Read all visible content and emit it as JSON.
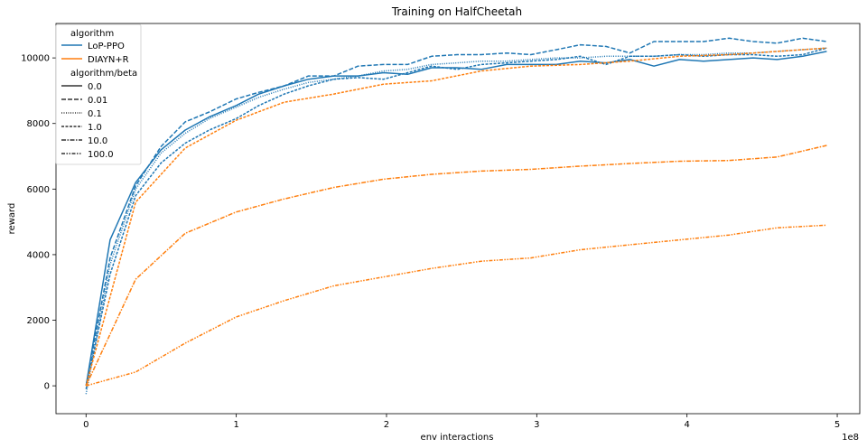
{
  "chart_data": {
    "type": "line",
    "title": "Training on HalfCheetah",
    "xlabel": "env interactions",
    "ylabel": "reward",
    "x_offset_text": "1e8",
    "xlim": [
      -0.2,
      5.15
    ],
    "ylim": [
      -850,
      11050
    ],
    "x_ticks": [
      0,
      1,
      2,
      3,
      4,
      5
    ],
    "x_tick_labels": [
      "0",
      "1",
      "2",
      "3",
      "4",
      "5"
    ],
    "y_ticks": [
      0,
      2000,
      4000,
      6000,
      8000,
      10000
    ],
    "y_tick_labels": [
      "0",
      "2000",
      "4000",
      "6000",
      "8000",
      "10000"
    ],
    "grid": false,
    "legend": {
      "placement": "top-left",
      "hue_title": "algorithm",
      "hue_entries": [
        {
          "label": "LoP-PPO",
          "color": "#1f77b4"
        },
        {
          "label": "DIAYN+R",
          "color": "#ff7f0e"
        }
      ],
      "style_title": "algorithm/beta",
      "style_entries": [
        {
          "label": "0.0",
          "dash": "solid"
        },
        {
          "label": "0.01",
          "dash": "dashed"
        },
        {
          "label": "0.1",
          "dash": "dotted"
        },
        {
          "label": "1.0",
          "dash": "dense-dashed"
        },
        {
          "label": "10.0",
          "dash": "dash-dot"
        },
        {
          "label": "100.0",
          "dash": "dash-dot-dot"
        }
      ]
    },
    "series": [
      {
        "algorithm": "LoP-PPO",
        "beta": "0.0",
        "color": "#1f77b4",
        "dash": "solid",
        "x": [
          0.0,
          0.16,
          0.33,
          0.5,
          0.66,
          0.82,
          1.0,
          1.15,
          1.32,
          1.48,
          1.65,
          1.81,
          1.98,
          2.14,
          2.3,
          2.47,
          2.63,
          2.8,
          2.96,
          3.13,
          3.29,
          3.46,
          3.62,
          3.78,
          3.95,
          4.11,
          4.28,
          4.44,
          4.6,
          4.77,
          4.93
        ],
        "y": [
          0,
          4450,
          6200,
          7200,
          7800,
          8200,
          8550,
          8900,
          9150,
          9350,
          9450,
          9450,
          9550,
          9500,
          9700,
          9700,
          9650,
          9800,
          9800,
          9800,
          9900,
          9850,
          9950,
          9750,
          9950,
          9900,
          9950,
          10000,
          9950,
          10050,
          10200
        ]
      },
      {
        "algorithm": "LoP-PPO",
        "beta": "0.01",
        "color": "#1f77b4",
        "dash": "dashed",
        "x": [
          0.0,
          0.16,
          0.33,
          0.5,
          0.66,
          0.82,
          1.0,
          1.15,
          1.32,
          1.48,
          1.65,
          1.81,
          1.98,
          2.14,
          2.3,
          2.47,
          2.63,
          2.8,
          2.96,
          3.13,
          3.29,
          3.46,
          3.62,
          3.78,
          3.95,
          4.11,
          4.28,
          4.44,
          4.6,
          4.77,
          4.93
        ],
        "y": [
          0,
          3900,
          6100,
          7300,
          8050,
          8350,
          8750,
          8950,
          9150,
          9450,
          9450,
          9750,
          9800,
          9800,
          10050,
          10100,
          10100,
          10150,
          10100,
          10250,
          10400,
          10350,
          10150,
          10500,
          10500,
          10500,
          10600,
          10500,
          10450,
          10600,
          10500
        ]
      },
      {
        "algorithm": "LoP-PPO",
        "beta": "0.1",
        "color": "#1f77b4",
        "dash": "dotted",
        "x": [
          0.0,
          0.16,
          0.33,
          0.5,
          0.66,
          0.82,
          1.0,
          1.15,
          1.32,
          1.48,
          1.65,
          1.81,
          1.98,
          2.14,
          2.3,
          2.47,
          2.63,
          2.8,
          2.96,
          3.13,
          3.29,
          3.46,
          3.62,
          3.78,
          3.95,
          4.11,
          4.28,
          4.44,
          4.6,
          4.77,
          4.93
        ],
        "y": [
          -250,
          3700,
          6000,
          7100,
          7700,
          8150,
          8500,
          8800,
          9050,
          9250,
          9350,
          9450,
          9600,
          9650,
          9800,
          9850,
          9900,
          9900,
          9950,
          10000,
          10000,
          10050,
          10050,
          10050,
          10100,
          10100,
          10150,
          10150,
          10200,
          10250,
          10300
        ]
      },
      {
        "algorithm": "LoP-PPO",
        "beta": "1.0",
        "color": "#1f77b4",
        "dash": "dense-dashed",
        "x": [
          0.0,
          0.16,
          0.33,
          0.5,
          0.66,
          0.82,
          1.0,
          1.15,
          1.32,
          1.48,
          1.65,
          1.81,
          1.98,
          2.14,
          2.3,
          2.47,
          2.63,
          2.8,
          2.96,
          3.13,
          3.29,
          3.46,
          3.62,
          3.78,
          3.95,
          4.11,
          4.28,
          4.44,
          4.6,
          4.77,
          4.93
        ],
        "y": [
          -100,
          3400,
          5800,
          6800,
          7400,
          7800,
          8150,
          8550,
          8900,
          9150,
          9350,
          9400,
          9350,
          9550,
          9750,
          9650,
          9800,
          9850,
          9900,
          9950,
          10050,
          9800,
          10050,
          10050,
          10100,
          10050,
          10100,
          10100,
          10050,
          10100,
          10300
        ]
      },
      {
        "algorithm": "DIAYN+R",
        "beta": "10.0",
        "color": "#ff7f0e",
        "dash": "dash-dot",
        "x": [
          0.0,
          0.33,
          0.66,
          1.0,
          1.32,
          1.65,
          1.98,
          2.3,
          2.63,
          2.96,
          3.29,
          3.62,
          3.95,
          4.28,
          4.6,
          4.93
        ],
        "y": [
          0,
          3250,
          4650,
          5300,
          5700,
          6050,
          6300,
          6450,
          6550,
          6600,
          6700,
          6780,
          6850,
          6870,
          6980,
          7330
        ]
      },
      {
        "algorithm": "DIAYN+R",
        "beta": "100.0",
        "color": "#ff7f0e",
        "dash": "dash-dot-dot",
        "x": [
          0.0,
          0.33,
          0.66,
          1.0,
          1.32,
          1.65,
          1.98,
          2.3,
          2.63,
          2.96,
          3.29,
          3.62,
          3.95,
          4.28,
          4.6,
          4.93
        ],
        "y": [
          0,
          420,
          1300,
          2100,
          2600,
          3050,
          3320,
          3580,
          3800,
          3900,
          4150,
          4300,
          4450,
          4600,
          4820,
          4900
        ]
      },
      {
        "algorithm": "DIAYN+R",
        "beta": "1.0",
        "color": "#ff7f0e",
        "dash": "dense-dashed",
        "x": [
          0.0,
          0.33,
          0.66,
          1.0,
          1.32,
          1.65,
          1.98,
          2.3,
          2.63,
          2.96,
          3.29,
          3.62,
          3.95,
          4.28,
          4.6,
          4.93
        ],
        "y": [
          0,
          5600,
          7250,
          8100,
          8650,
          8900,
          9200,
          9300,
          9600,
          9750,
          9800,
          9900,
          10050,
          10100,
          10200,
          10300
        ]
      }
    ]
  }
}
